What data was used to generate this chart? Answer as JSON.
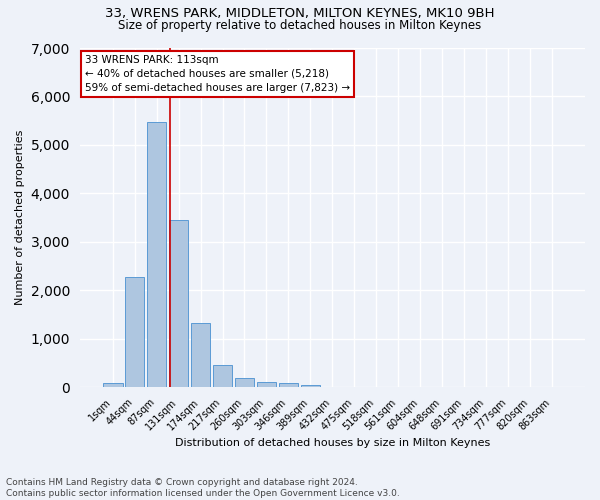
{
  "title1": "33, WRENS PARK, MIDDLETON, MILTON KEYNES, MK10 9BH",
  "title2": "Size of property relative to detached houses in Milton Keynes",
  "xlabel": "Distribution of detached houses by size in Milton Keynes",
  "ylabel": "Number of detached properties",
  "footnote1": "Contains HM Land Registry data © Crown copyright and database right 2024.",
  "footnote2": "Contains public sector information licensed under the Open Government Licence v3.0.",
  "bar_labels": [
    "1sqm",
    "44sqm",
    "87sqm",
    "131sqm",
    "174sqm",
    "217sqm",
    "260sqm",
    "303sqm",
    "346sqm",
    "389sqm",
    "432sqm",
    "475sqm",
    "518sqm",
    "561sqm",
    "604sqm",
    "648sqm",
    "691sqm",
    "734sqm",
    "777sqm",
    "820sqm",
    "863sqm"
  ],
  "bar_values": [
    80,
    2280,
    5480,
    3450,
    1320,
    460,
    180,
    110,
    80,
    50,
    0,
    0,
    0,
    0,
    0,
    0,
    0,
    0,
    0,
    0,
    0
  ],
  "bar_color": "#aec6e0",
  "bar_edgecolor": "#5b9bd5",
  "annotation_text": "33 WRENS PARK: 113sqm\n← 40% of detached houses are smaller (5,218)\n59% of semi-detached houses are larger (7,823) →",
  "annotation_box_color": "#ffffff",
  "annotation_box_edgecolor": "#cc0000",
  "vline_color": "#cc0000",
  "ylim": [
    0,
    7000
  ],
  "yticks": [
    0,
    1000,
    2000,
    3000,
    4000,
    5000,
    6000,
    7000
  ],
  "bg_color": "#eef2f9",
  "grid_color": "#ffffff",
  "title1_fontsize": 9.5,
  "title2_fontsize": 8.5,
  "xlabel_fontsize": 8,
  "ylabel_fontsize": 8,
  "tick_fontsize": 7,
  "annotation_fontsize": 7.5,
  "footnote_fontsize": 6.5
}
